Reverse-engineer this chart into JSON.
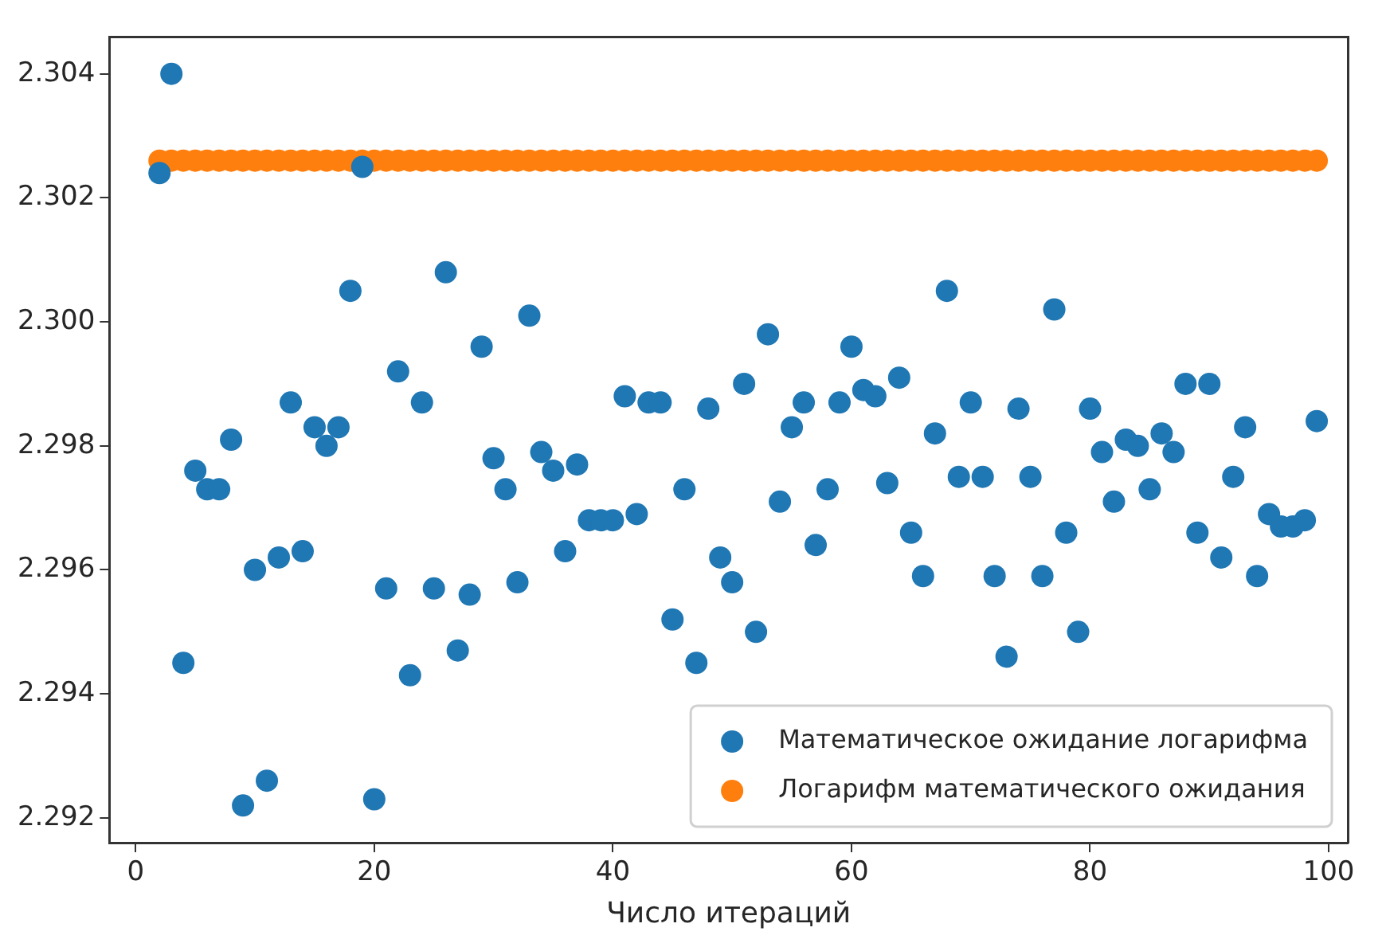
{
  "chart_data": {
    "type": "scatter",
    "xlabel": "Число итераций",
    "x": [
      2,
      3,
      4,
      5,
      6,
      7,
      8,
      9,
      10,
      11,
      12,
      13,
      14,
      15,
      16,
      17,
      18,
      19,
      20,
      21,
      22,
      23,
      24,
      25,
      26,
      27,
      28,
      29,
      30,
      31,
      32,
      33,
      34,
      35,
      36,
      37,
      38,
      39,
      40,
      41,
      42,
      43,
      44,
      45,
      46,
      47,
      48,
      49,
      50,
      51,
      52,
      53,
      54,
      55,
      56,
      57,
      58,
      59,
      60,
      61,
      62,
      63,
      64,
      65,
      66,
      67,
      68,
      69,
      70,
      71,
      72,
      73,
      74,
      75,
      76,
      77,
      78,
      79,
      80,
      81,
      82,
      83,
      84,
      85,
      86,
      87,
      88,
      89,
      90,
      91,
      92,
      93,
      94,
      95,
      96,
      97,
      98,
      99
    ],
    "series": [
      {
        "name": "Математическое ожидание логарифма",
        "color": "#1f77b4",
        "values": [
          2.3024,
          2.304,
          2.2945,
          2.2976,
          2.2973,
          2.2973,
          2.2981,
          2.2922,
          2.296,
          2.2926,
          2.2962,
          2.2987,
          2.2963,
          2.2983,
          2.298,
          2.2983,
          2.3005,
          2.3025,
          2.2923,
          2.2957,
          2.2992,
          2.2943,
          2.2987,
          2.2957,
          2.3008,
          2.2947,
          2.2956,
          2.2996,
          2.2978,
          2.2973,
          2.2958,
          2.3001,
          2.2979,
          2.2976,
          2.2963,
          2.2977,
          2.2968,
          2.2968,
          2.2968,
          2.2988,
          2.2969,
          2.2987,
          2.2987,
          2.2952,
          2.2973,
          2.2945,
          2.2986,
          2.2962,
          2.2958,
          2.299,
          2.295,
          2.2998,
          2.2971,
          2.2983,
          2.2987,
          2.2964,
          2.2973,
          2.2987,
          2.2996,
          2.2989,
          2.2988,
          2.2974,
          2.2991,
          2.2966,
          2.2959,
          2.2982,
          2.3005,
          2.2975,
          2.2987,
          2.2975,
          2.2959,
          2.2946,
          2.2986,
          2.2975,
          2.2959,
          2.3002,
          2.2966,
          2.295,
          2.2986,
          2.2979,
          2.2971,
          2.2981,
          2.298,
          2.2973,
          2.2982,
          2.2979,
          2.299,
          2.2966,
          2.299,
          2.2962,
          2.2975,
          2.2983,
          2.2959,
          2.2969,
          2.2967,
          2.2967,
          2.2968,
          2.2984
        ]
      },
      {
        "name": "Логарифм математического ожидания",
        "color": "#ff7f0e",
        "values": [
          2.3026,
          2.3026,
          2.3026,
          2.3026,
          2.3026,
          2.3026,
          2.3026,
          2.3026,
          2.3026,
          2.3026,
          2.3026,
          2.3026,
          2.3026,
          2.3026,
          2.3026,
          2.3026,
          2.3026,
          2.3026,
          2.3026,
          2.3026,
          2.3026,
          2.3026,
          2.3026,
          2.3026,
          2.3026,
          2.3026,
          2.3026,
          2.3026,
          2.3026,
          2.3026,
          2.3026,
          2.3026,
          2.3026,
          2.3026,
          2.3026,
          2.3026,
          2.3026,
          2.3026,
          2.3026,
          2.3026,
          2.3026,
          2.3026,
          2.3026,
          2.3026,
          2.3026,
          2.3026,
          2.3026,
          2.3026,
          2.3026,
          2.3026,
          2.3026,
          2.3026,
          2.3026,
          2.3026,
          2.3026,
          2.3026,
          2.3026,
          2.3026,
          2.3026,
          2.3026,
          2.3026,
          2.3026,
          2.3026,
          2.3026,
          2.3026,
          2.3026,
          2.3026,
          2.3026,
          2.3026,
          2.3026,
          2.3026,
          2.3026,
          2.3026,
          2.3026,
          2.3026,
          2.3026,
          2.3026,
          2.3026,
          2.3026,
          2.3026,
          2.3026,
          2.3026,
          2.3026,
          2.3026,
          2.3026,
          2.3026,
          2.3026,
          2.3026,
          2.3026,
          2.3026,
          2.3026,
          2.3026,
          2.3026,
          2.3026,
          2.3026,
          2.3026,
          2.3026,
          2.3026
        ]
      }
    ],
    "xlim": [
      -2.2,
      101.6
    ],
    "xticks": [
      0,
      20,
      40,
      60,
      80,
      100
    ],
    "ylim": [
      2.2916,
      2.3046
    ],
    "yticks": [
      {
        "value": 2.292,
        "label": "2.292"
      },
      {
        "value": 2.294,
        "label": "2.294"
      },
      {
        "value": 2.296,
        "label": "2.296"
      },
      {
        "value": 2.298,
        "label": "2.298"
      },
      {
        "value": 2.3,
        "label": "2.300"
      },
      {
        "value": 2.302,
        "label": "2.302"
      },
      {
        "value": 2.304,
        "label": "2.304"
      }
    ],
    "grid": false,
    "legend": "bottom right",
    "marker": "circle"
  }
}
